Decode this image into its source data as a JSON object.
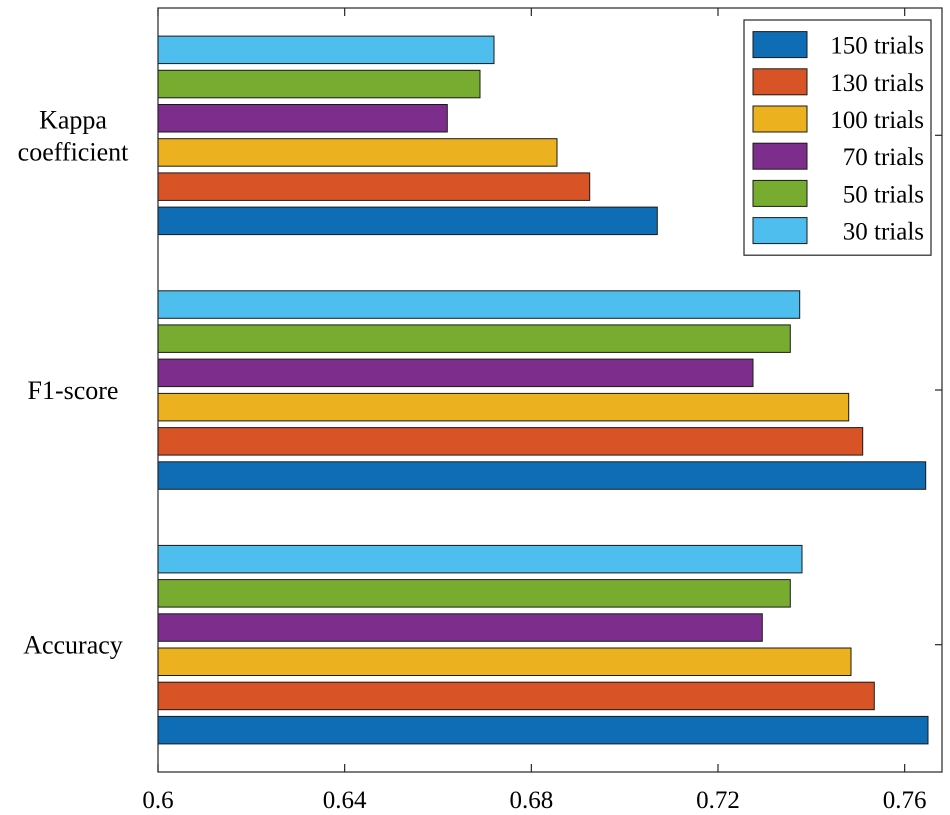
{
  "chart_data": {
    "type": "bar",
    "orientation": "horizontal",
    "categories": [
      "Accuracy",
      "F1-score",
      "Kappa coefficient"
    ],
    "category_labels": [
      [
        "Accuracy"
      ],
      [
        "F1-score"
      ],
      [
        "Kappa",
        "coefficient"
      ]
    ],
    "series": [
      {
        "name": "150 trials",
        "color": "#0f6db6",
        "values": [
          0.765,
          0.7645,
          0.707
        ]
      },
      {
        "name": "130 trials",
        "color": "#d85326",
        "values": [
          0.7535,
          0.751,
          0.6925
        ]
      },
      {
        "name": "100 trials",
        "color": "#ebb11f",
        "values": [
          0.7485,
          0.748,
          0.6855
        ]
      },
      {
        "name": "70 trials",
        "color": "#7d2e8d",
        "values": [
          0.7295,
          0.7275,
          0.662
        ]
      },
      {
        "name": "50 trials",
        "color": "#77ac30",
        "values": [
          0.7355,
          0.7355,
          0.669
        ]
      },
      {
        "name": "30 trials",
        "color": "#4dbeee",
        "values": [
          0.738,
          0.7375,
          0.672
        ]
      }
    ],
    "xlim": [
      0.6,
      0.768
    ],
    "xticks": [
      0.6,
      0.64,
      0.68,
      0.72,
      0.76
    ],
    "xtick_labels": [
      "0.6",
      "0.64",
      "0.68",
      "0.72",
      "0.76"
    ],
    "title": "",
    "xlabel": "",
    "ylabel": "",
    "grid": false,
    "legend_position": "top-right"
  }
}
